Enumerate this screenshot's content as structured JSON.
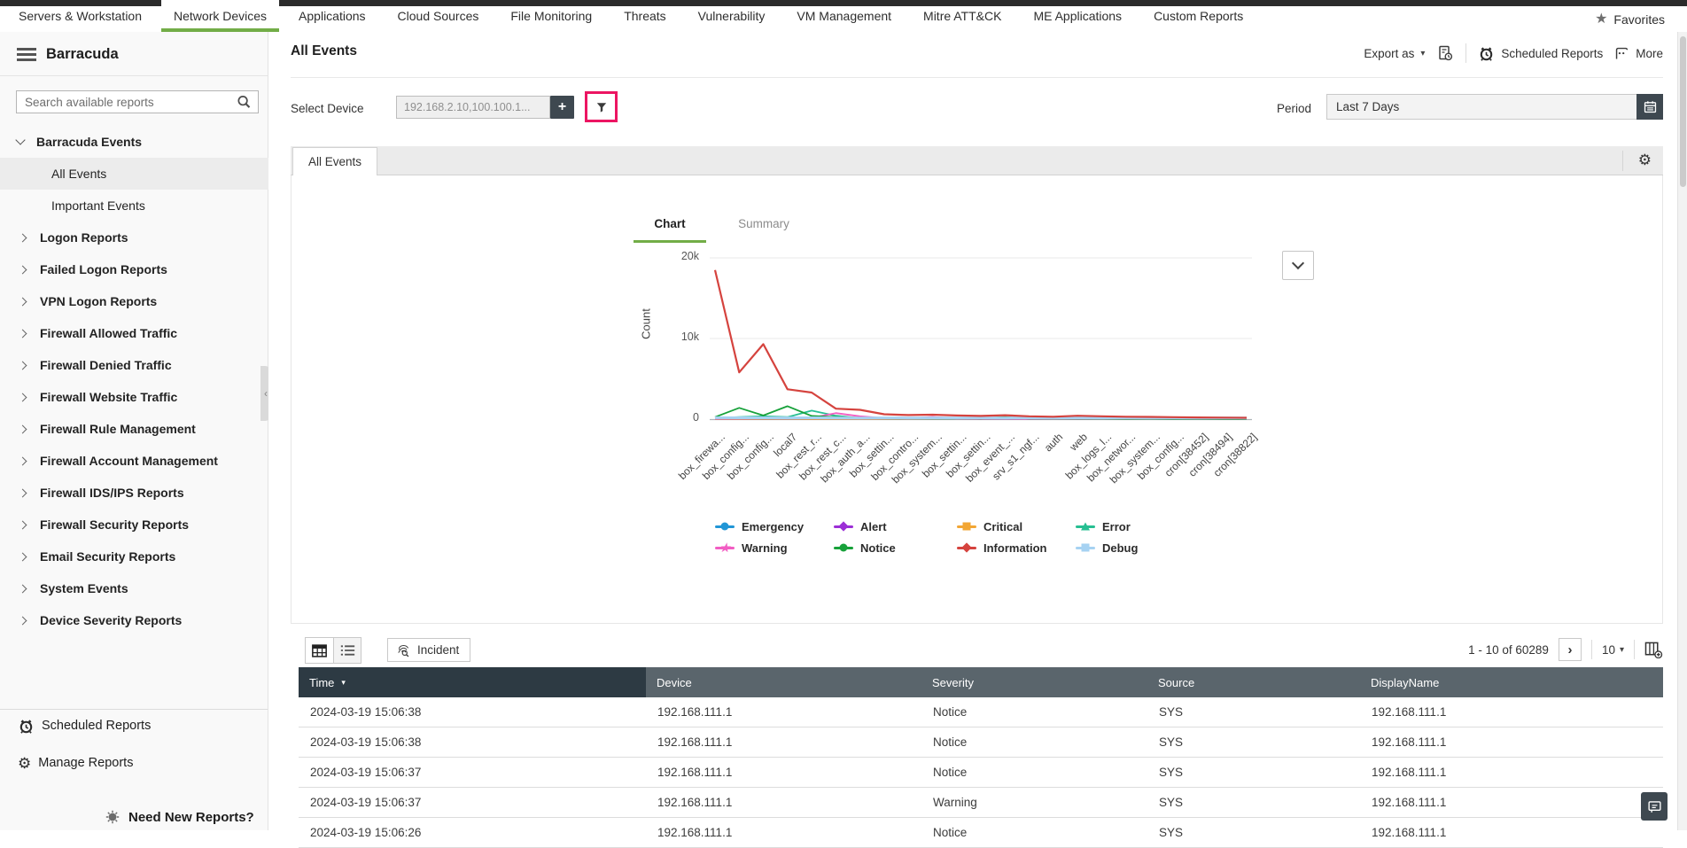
{
  "topnav": {
    "tabs": [
      {
        "label": "Servers & Workstation",
        "active": false
      },
      {
        "label": "Network Devices",
        "active": true
      },
      {
        "label": "Applications",
        "active": false
      },
      {
        "label": "Cloud Sources",
        "active": false
      },
      {
        "label": "File Monitoring",
        "active": false
      },
      {
        "label": "Threats",
        "active": false
      },
      {
        "label": "Vulnerability",
        "active": false
      },
      {
        "label": "VM Management",
        "active": false
      },
      {
        "label": "Mitre ATT&CK",
        "active": false
      },
      {
        "label": "ME Applications",
        "active": false
      },
      {
        "label": "Custom Reports",
        "active": false
      }
    ],
    "favorites_label": "Favorites"
  },
  "sidebar": {
    "title": "Barracuda",
    "search_placeholder": "Search available reports",
    "tree": [
      {
        "label": "Barracuda Events",
        "kind": "root",
        "selected": false
      },
      {
        "label": "All Events",
        "kind": "leaf",
        "selected": true
      },
      {
        "label": "Important Events",
        "kind": "leaf",
        "selected": false
      },
      {
        "label": "Logon Reports",
        "kind": "group",
        "selected": false
      },
      {
        "label": "Failed Logon Reports",
        "kind": "group",
        "selected": false
      },
      {
        "label": "VPN Logon Reports",
        "kind": "group",
        "selected": false
      },
      {
        "label": "Firewall Allowed Traffic",
        "kind": "group",
        "selected": false
      },
      {
        "label": "Firewall Denied Traffic",
        "kind": "group",
        "selected": false
      },
      {
        "label": "Firewall Website Traffic",
        "kind": "group",
        "selected": false
      },
      {
        "label": "Firewall Rule Management",
        "kind": "group",
        "selected": false
      },
      {
        "label": "Firewall Account Management",
        "kind": "group",
        "selected": false
      },
      {
        "label": "Firewall IDS/IPS Reports",
        "kind": "group",
        "selected": false
      },
      {
        "label": "Firewall Security Reports",
        "kind": "group",
        "selected": false
      },
      {
        "label": "Email Security Reports",
        "kind": "group",
        "selected": false
      },
      {
        "label": "System Events",
        "kind": "group",
        "selected": false
      },
      {
        "label": "Device Severity Reports",
        "kind": "group",
        "selected": false
      }
    ],
    "footer": {
      "scheduled_label": "Scheduled Reports",
      "manage_label": "Manage Reports",
      "need_new_label": "Need New Reports?"
    }
  },
  "header": {
    "title": "All Events",
    "export_label": "Export as",
    "scheduled_label": "Scheduled Reports",
    "more_label": "More"
  },
  "filters": {
    "select_device_label": "Select Device",
    "device_value": "192.168.2.10,100.100.1...",
    "period_label": "Period",
    "period_value": "Last 7 Days"
  },
  "report_tab_label": "All Events",
  "chart_data": {
    "type": "line",
    "tabs": [
      "Chart",
      "Summary"
    ],
    "active_tab": "Chart",
    "ylabel": "Count",
    "yticks": [
      "20k",
      "10k",
      "0"
    ],
    "ylim": [
      0,
      20000
    ],
    "grid": true,
    "legend_position": "bottom",
    "categories": [
      "box_firewa...",
      "box_config...",
      "box_config...",
      "local7",
      "box_rest_r...",
      "box_rest_c...",
      "box_auth_a...",
      "box_settin...",
      "box_contro...",
      "box_system...",
      "box_settin...",
      "box_settin...",
      "box_event_...",
      "srv_s1_ngf...",
      "auth",
      "web",
      "box_logs_l...",
      "box_networ...",
      "box_system...",
      "box_config...",
      "cron[38452]",
      "cron[38494]",
      "cron[38822]"
    ],
    "series": [
      {
        "name": "Emergency",
        "color": "#2196d6",
        "marker": "circle",
        "values": [
          15,
          20,
          18,
          25,
          20,
          15,
          12,
          10,
          10,
          8,
          8,
          6,
          6,
          5,
          5,
          5,
          4,
          4,
          3,
          3,
          2,
          2,
          2
        ]
      },
      {
        "name": "Alert",
        "color": "#9c2fd6",
        "marker": "diamond",
        "values": [
          10,
          12,
          15,
          18,
          14,
          12,
          10,
          8,
          8,
          6,
          6,
          5,
          5,
          4,
          4,
          3,
          3,
          3,
          2,
          2,
          2,
          1,
          1
        ]
      },
      {
        "name": "Critical",
        "color": "#f2a634",
        "marker": "square",
        "values": [
          20,
          25,
          30,
          28,
          22,
          18,
          15,
          12,
          10,
          10,
          8,
          8,
          6,
          6,
          5,
          5,
          4,
          4,
          3,
          3,
          2,
          2,
          2
        ]
      },
      {
        "name": "Error",
        "color": "#27bf92",
        "marker": "triangle",
        "values": [
          120,
          250,
          350,
          250,
          1050,
          420,
          120,
          90,
          70,
          50,
          40,
          30,
          25,
          20,
          15,
          12,
          10,
          8,
          6,
          5,
          4,
          3,
          2
        ]
      },
      {
        "name": "Warning",
        "color": "#f25dc3",
        "marker": "star",
        "values": [
          60,
          80,
          100,
          120,
          160,
          750,
          350,
          120,
          90,
          280,
          70,
          50,
          35,
          25,
          18,
          14,
          10,
          8,
          6,
          5,
          4,
          3,
          2
        ]
      },
      {
        "name": "Notice",
        "color": "#17a13a",
        "marker": "circle",
        "values": [
          250,
          1400,
          450,
          1600,
          400,
          250,
          180,
          140,
          120,
          100,
          160,
          90,
          260,
          70,
          60,
          50,
          40,
          35,
          30,
          25,
          20,
          15,
          10
        ]
      },
      {
        "name": "Information",
        "color": "#d5433e",
        "marker": "diamond",
        "values": [
          18500,
          5800,
          9300,
          3700,
          3300,
          1300,
          1150,
          600,
          500,
          550,
          450,
          400,
          480,
          350,
          300,
          420,
          350,
          300,
          270,
          240,
          210,
          190,
          170
        ]
      },
      {
        "name": "Debug",
        "color": "#a6d2f2",
        "marker": "square",
        "values": [
          180,
          160,
          170,
          150,
          160,
          150,
          140,
          150,
          140,
          150,
          140,
          150,
          140,
          150,
          140,
          150,
          140,
          150,
          140,
          150,
          140,
          150,
          140
        ]
      }
    ]
  },
  "table": {
    "toolbar": {
      "incident_label": "Incident",
      "pagination_text": "1 - 10 of 60289",
      "page_size": "10"
    },
    "columns": [
      "Time",
      "Device",
      "Severity",
      "Source",
      "DisplayName"
    ],
    "rows": [
      [
        "2024-03-19 15:06:38",
        "192.168.111.1",
        "Notice",
        "SYS",
        "192.168.111.1"
      ],
      [
        "2024-03-19 15:06:38",
        "192.168.111.1",
        "Notice",
        "SYS",
        "192.168.111.1"
      ],
      [
        "2024-03-19 15:06:37",
        "192.168.111.1",
        "Notice",
        "SYS",
        "192.168.111.1"
      ],
      [
        "2024-03-19 15:06:37",
        "192.168.111.1",
        "Warning",
        "SYS",
        "192.168.111.1"
      ],
      [
        "2024-03-19 15:06:26",
        "192.168.111.1",
        "Notice",
        "SYS",
        "192.168.111.1"
      ]
    ]
  },
  "icons": {
    "favorites_star": "★",
    "gear": "⚙",
    "sort_desc": "▾",
    "caret_down": "▾",
    "next_page": "›",
    "plus": "+",
    "collapse_arrow": "‹"
  },
  "colors": {
    "accent_green": "#72ad47",
    "highlight_pink": "#ec1562",
    "dark_button": "#3e4850",
    "table_header_dark": "#2d3a43",
    "table_header_gray": "#5a656c"
  }
}
